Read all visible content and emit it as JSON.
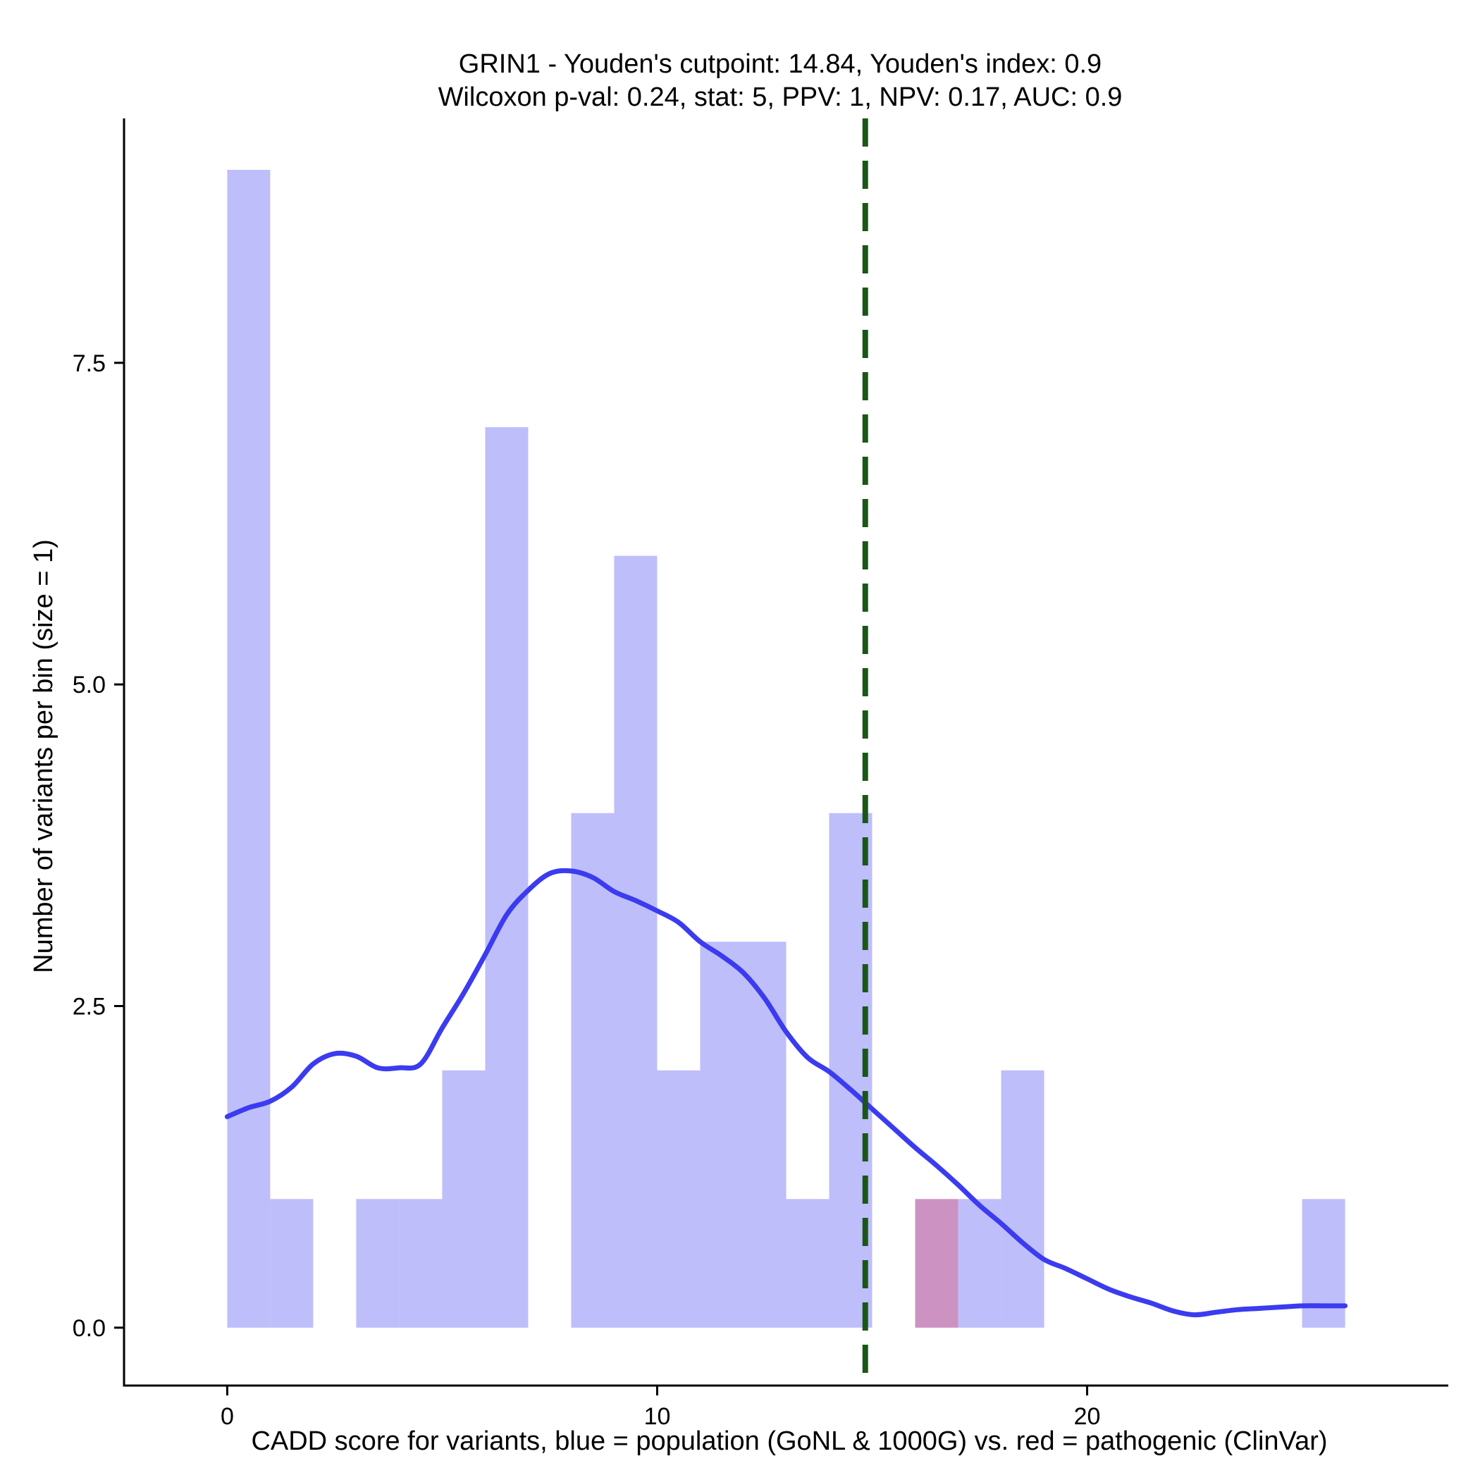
{
  "chart_data": {
    "type": "histogram",
    "title": "GRIN1 - Youden's cutpoint: 14.84, Youden's index: 0.9",
    "subtitle": "Wilcoxon p-val: 0.24, stat: 5, PPV: 1, NPV: 0.17, AUC: 0.9",
    "xlabel": "CADD score for variants, blue = population (GoNL & 1000G) vs. red = pathogenic (ClinVar)",
    "ylabel": "Number of variants per bin (size = 1)",
    "xlim": [
      -2.4,
      28.4
    ],
    "ylim": [
      -0.45,
      9.4
    ],
    "x_ticks": [
      0,
      10,
      20
    ],
    "x_tick_labels": [
      "0",
      "10",
      "20"
    ],
    "y_ticks": [
      0,
      2.5,
      5,
      7.5
    ],
    "y_tick_labels": [
      "0.0",
      "2.5",
      "5.0",
      "7.5"
    ],
    "bin_width": 1,
    "series": [
      {
        "name": "population (GoNL & 1000G)",
        "color": "#bebefb",
        "bins": [
          {
            "start": 0,
            "count": 9
          },
          {
            "start": 1,
            "count": 1
          },
          {
            "start": 3,
            "count": 1
          },
          {
            "start": 4,
            "count": 1
          },
          {
            "start": 5,
            "count": 2
          },
          {
            "start": 6,
            "count": 7
          },
          {
            "start": 8,
            "count": 4
          },
          {
            "start": 9,
            "count": 6
          },
          {
            "start": 10,
            "count": 2
          },
          {
            "start": 11,
            "count": 3
          },
          {
            "start": 12,
            "count": 3
          },
          {
            "start": 13,
            "count": 1
          },
          {
            "start": 14,
            "count": 4
          },
          {
            "start": 17,
            "count": 1
          },
          {
            "start": 18,
            "count": 2
          },
          {
            "start": 25,
            "count": 1
          }
        ]
      },
      {
        "name": "pathogenic (ClinVar)",
        "color": "#cc92c2",
        "bins": [
          {
            "start": 16,
            "count": 1
          }
        ]
      }
    ],
    "density_curve": {
      "name": "population density",
      "color": "#3b3bf0",
      "x": [
        0,
        0.5,
        1,
        1.5,
        2,
        2.5,
        3,
        3.5,
        4,
        4.5,
        5,
        5.5,
        6,
        6.5,
        7,
        7.5,
        8,
        8.5,
        9,
        9.5,
        10,
        10.5,
        11,
        11.5,
        12,
        12.5,
        13,
        13.5,
        14,
        14.5,
        15,
        15.5,
        16,
        16.5,
        17,
        17.5,
        18,
        18.5,
        19,
        19.5,
        20,
        20.5,
        21,
        21.5,
        22,
        22.5,
        23,
        23.5,
        24,
        24.5,
        25,
        25.5,
        26
      ],
      "y": [
        1.64,
        1.71,
        1.76,
        1.87,
        2.05,
        2.13,
        2.11,
        2.02,
        2.02,
        2.05,
        2.33,
        2.6,
        2.9,
        3.21,
        3.4,
        3.53,
        3.55,
        3.5,
        3.39,
        3.32,
        3.24,
        3.15,
        3.0,
        2.89,
        2.76,
        2.56,
        2.3,
        2.1,
        1.99,
        1.85,
        1.7,
        1.55,
        1.4,
        1.26,
        1.11,
        0.95,
        0.81,
        0.66,
        0.53,
        0.46,
        0.38,
        0.3,
        0.24,
        0.19,
        0.13,
        0.1,
        0.12,
        0.14,
        0.15,
        0.16,
        0.17,
        0.17,
        0.17
      ]
    },
    "cutpoint_line": {
      "label": "Youden's cutpoint",
      "x": 14.84,
      "color": "#1a5717",
      "style": "dashed"
    },
    "legend": "none",
    "grid": false
  }
}
